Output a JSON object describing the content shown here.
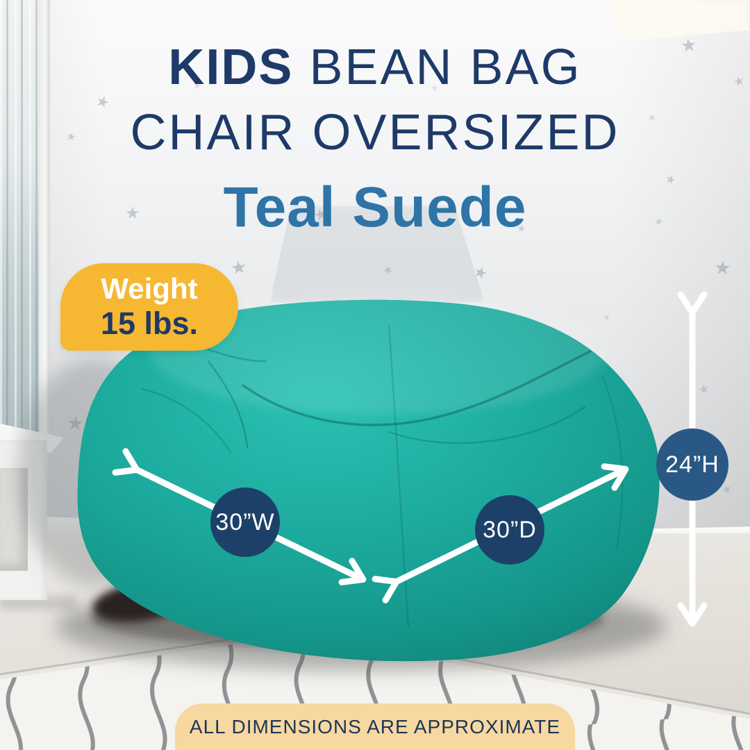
{
  "title": {
    "line1_bold": "KIDS",
    "line1_rest": " BEAN BAG",
    "line2": "CHAIR OVERSIZED",
    "line3": "Teal Suede"
  },
  "weight_badge": {
    "label": "Weight",
    "value": "15 lbs."
  },
  "dimensions": {
    "width_label": "30”W",
    "depth_label": "30”D",
    "height_label": "24”H"
  },
  "footer": {
    "text": "ALL DIMENSIONS ARE APPROXIMATE"
  },
  "icons": {
    "star": "★"
  },
  "colors": {
    "title_navy": "#1E3A68",
    "teal_text": "#2E74A6",
    "badge_yellow": "#F6B733",
    "banner_peach": "#F6D8A0",
    "dim_circle_navy": "#1D4068",
    "dim_circle_blue": "#2A5885",
    "beanbag_teal": "#14A89B",
    "arrow_white": "#FFFFFF"
  }
}
